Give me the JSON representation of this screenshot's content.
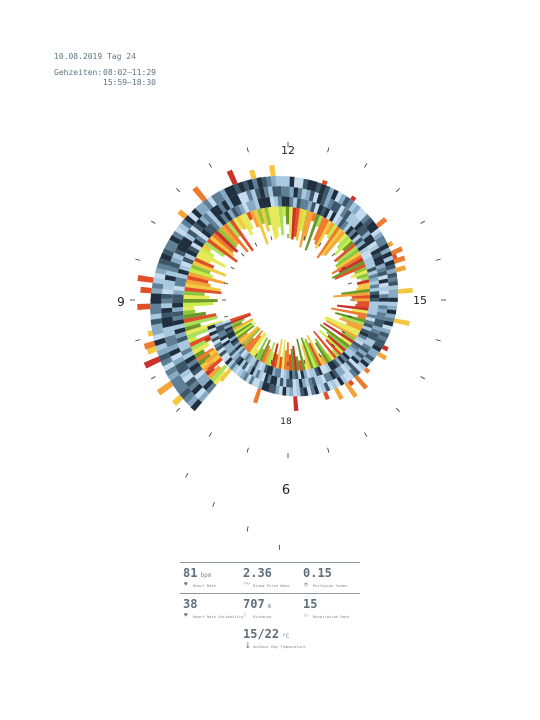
{
  "header": {
    "date_line": "10.08.2019 Tag 24",
    "times_label": "Gehzeiten:",
    "times": [
      "08:02–11:29",
      "15:59–18:30"
    ]
  },
  "chart_data": {
    "type": "radial-bar",
    "clock_labels": {
      "top": "12",
      "right": "15",
      "left": "9",
      "bottom": "6",
      "inner_bottom": "18"
    },
    "palette": {
      "cold": [
        "#1f2f3e",
        "#3d5668",
        "#5f7f97",
        "#86a9c4",
        "#a8c8e0",
        "#c4dcee"
      ],
      "warm": [
        "#6b9a2a",
        "#8cc63f",
        "#a8e05a",
        "#c8ec4a",
        "#e8e85a",
        "#f5c842",
        "#f3a53a",
        "#ee7a30",
        "#e04e2a",
        "#c8322a"
      ]
    }
  },
  "stats": [
    {
      "value": "81",
      "unit": "bpm",
      "icon": "heart-icon",
      "label": "Heart Rate"
    },
    {
      "value": "2.36",
      "unit": "",
      "icon": "pulse-wave-icon",
      "label": "Blood Pulse Wave"
    },
    {
      "value": "0.15",
      "unit": "",
      "icon": "perfusion-icon",
      "label": "Perfusion Index"
    },
    {
      "value": "38",
      "unit": "",
      "icon": "heart-variability-icon",
      "label": "Heart Rate Variability"
    },
    {
      "value": "707",
      "unit": "m",
      "icon": "footsteps-icon",
      "label": "Distance"
    },
    {
      "value": "15",
      "unit": "",
      "icon": "lungs-icon",
      "label": "Respiration Rate"
    }
  ],
  "temperature": {
    "value": "15/22",
    "unit": "°C",
    "icon": "thermometer-icon",
    "label": "Outdoor Day Temperature"
  }
}
